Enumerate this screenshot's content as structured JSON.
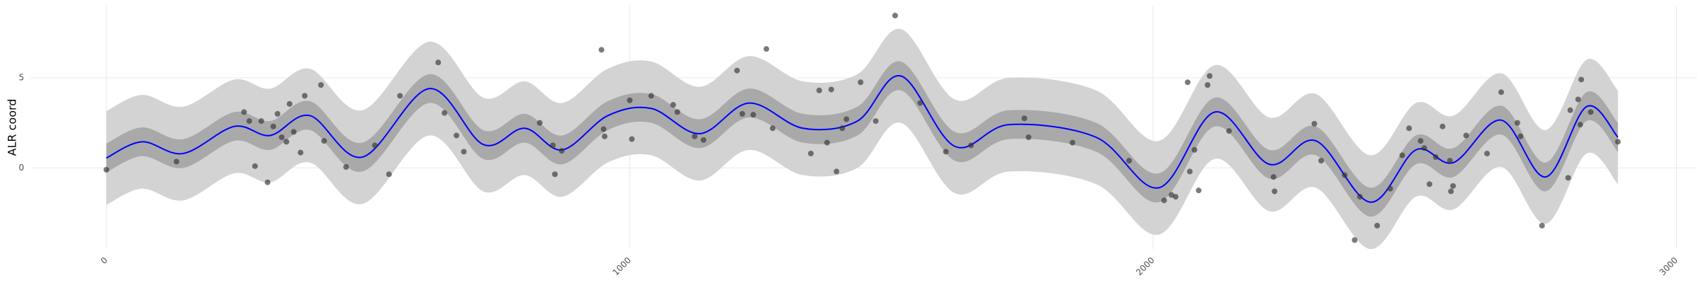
{
  "chart_data": {
    "type": "gp-fit",
    "y_label": "ALR coord",
    "xlim": [
      -145,
      3040
    ],
    "ylim": [
      -4.5,
      9
    ],
    "xticks": [
      0,
      1000,
      2000,
      3000
    ],
    "yticks": [
      0,
      5
    ],
    "grid": true,
    "line_color": "#0000ff",
    "inner_color": "#a9a9a9",
    "outer_color": "#d3d3d3",
    "point_color": "#333333",
    "x": [
      0,
      68,
      147,
      244,
      313,
      389,
      489,
      617,
      720,
      799,
      871,
      958,
      1041,
      1134,
      1228,
      1331,
      1435,
      1518,
      1621,
      1725,
      1891,
      2011,
      2118,
      2222,
      2311,
      2415,
      2502,
      2574,
      2665,
      2750,
      2828,
      2888
    ],
    "mean": [
      0.55,
      1.45,
      0.8,
      2.3,
      1.8,
      2.9,
      0.6,
      4.4,
      1.3,
      2.2,
      1.0,
      2.9,
      3.3,
      1.9,
      3.6,
      2.2,
      2.6,
      5.1,
      1.2,
      2.4,
      1.7,
      -1.1,
      3.1,
      0.2,
      1.5,
      -1.9,
      1.0,
      0.3,
      2.65,
      -0.5,
      3.4,
      1.7
    ],
    "inner_lower": [
      -0.25,
      0.65,
      0,
      1.5,
      1,
      2.1,
      -0.2,
      3.6,
      0.5,
      1.4,
      0.2,
      2.1,
      2.5,
      1.1,
      2.8,
      1.4,
      1.8,
      4.3,
      0.4,
      1.6,
      0.9,
      -1.9,
      2.3,
      -0.6,
      0.7,
      -2.7,
      0.2,
      -0.5,
      1.85,
      -1.3,
      2.6,
      0.9
    ],
    "inner_upper": [
      1.35,
      2.25,
      1.6,
      3.1,
      2.6,
      3.7,
      1.4,
      5.2,
      2.1,
      3,
      1.8,
      3.7,
      4.1,
      2.7,
      4.4,
      3,
      3.4,
      5.9,
      2,
      3.2,
      2.5,
      -0.3,
      3.9,
      1,
      2.3,
      -1.1,
      1.8,
      1.1,
      3.45,
      0.3,
      4.2,
      2.5
    ],
    "outer_lower": [
      -2.05,
      -1.15,
      -1.8,
      -0.3,
      -0.8,
      0.3,
      -2,
      1.8,
      -1.3,
      -0.4,
      -1.6,
      0.3,
      0.7,
      -0.7,
      1,
      -0.4,
      0,
      2.5,
      -1.4,
      -0.2,
      -0.9,
      -3.7,
      0.5,
      -2.4,
      -1.1,
      -4.5,
      -1.6,
      -2.3,
      0.05,
      -3.1,
      0.8,
      -0.9
    ],
    "outer_upper": [
      3.15,
      4.05,
      3.4,
      4.9,
      4.4,
      5.5,
      3.2,
      7,
      3.9,
      4.8,
      3.6,
      5.5,
      5.9,
      4.5,
      6.2,
      4.8,
      5.2,
      7.7,
      3.8,
      5,
      4.3,
      1.5,
      5.7,
      2.8,
      4.1,
      0.7,
      3.6,
      2.9,
      5.25,
      2.1,
      6,
      4.3
    ],
    "points": {
      "x": [
        0,
        134,
        263,
        273,
        284,
        296,
        308,
        319,
        327,
        335,
        344,
        350,
        358,
        371,
        379,
        410,
        416,
        458,
        513,
        540,
        561,
        634,
        646,
        669,
        683,
        828,
        853,
        857,
        870,
        946,
        950,
        952,
        1000,
        1004,
        1041,
        1083,
        1091,
        1124,
        1141,
        1205,
        1215,
        1236,
        1261,
        1273,
        1346,
        1362,
        1377,
        1385,
        1395,
        1406,
        1414,
        1441,
        1470,
        1507,
        1555,
        1604,
        1652,
        1754,
        1762,
        1846,
        1954,
        2021,
        2035,
        2043,
        2066,
        2070,
        2079,
        2087,
        2104,
        2108,
        2145,
        2230,
        2232,
        2308,
        2321,
        2366,
        2385,
        2395,
        2428,
        2453,
        2476,
        2489,
        2511,
        2518,
        2528,
        2540,
        2553,
        2567,
        2569,
        2573,
        2598,
        2638,
        2665,
        2696,
        2702,
        2743,
        2793,
        2797,
        2812,
        2818,
        2816,
        2836,
        2888
      ],
      "y": [
        -0.1,
        0.35,
        3.1,
        2.6,
        0.1,
        2.6,
        -0.8,
        2.3,
        3.0,
        1.7,
        1.45,
        3.55,
        2.0,
        0.85,
        4.0,
        4.6,
        1.5,
        0.05,
        1.25,
        -0.35,
        4.0,
        5.85,
        3.05,
        1.8,
        0.9,
        2.5,
        1.25,
        -0.35,
        0.95,
        6.55,
        2.15,
        1.75,
        3.75,
        1.6,
        4.0,
        3.5,
        3.1,
        1.75,
        1.55,
        5.4,
        3.0,
        2.95,
        6.6,
        2.2,
        0.8,
        4.3,
        1.4,
        4.35,
        -0.2,
        2.2,
        2.7,
        4.75,
        2.6,
        8.45,
        3.6,
        0.9,
        1.25,
        2.75,
        1.7,
        1.4,
        0.4,
        -1.8,
        -1.5,
        -1.6,
        4.75,
        -0.2,
        1.0,
        -1.25,
        4.6,
        5.1,
        2.05,
        -0.5,
        -1.3,
        2.45,
        0.4,
        -0.4,
        -4.0,
        -1.6,
        -3.2,
        -1.15,
        0.7,
        2.2,
        1.5,
        1.1,
        -0.9,
        0.6,
        2.3,
        0.4,
        -1.3,
        -1.0,
        1.8,
        0.8,
        4.2,
        2.5,
        1.75,
        -3.2,
        -0.55,
        3.2,
        3.8,
        4.9,
        2.4,
        3.1,
        1.45
      ]
    }
  }
}
